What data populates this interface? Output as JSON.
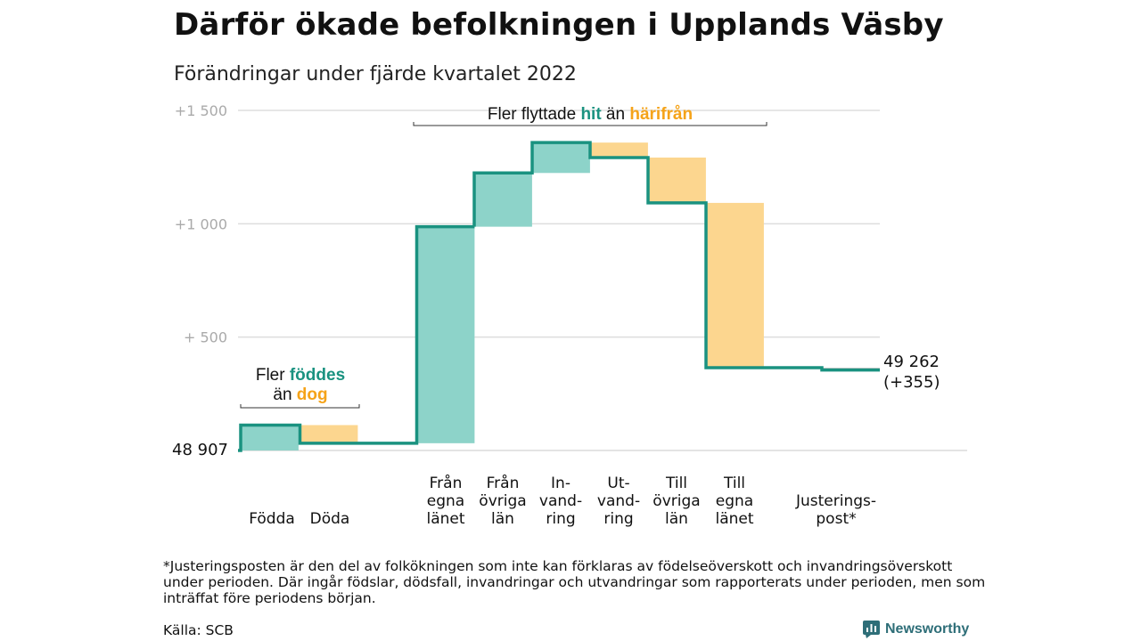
{
  "title": "Därför ökade befolkningen i Upplands Väsby",
  "subtitle": "Förändringar under fjärde kvartalet 2022",
  "footnote": "*Justeringsposten är den del av folkökningen som inte kan förklaras av födelseöverskott och invandringsöverskott under perioden. Där ingår födslar, dödsfall, invandringar och utvandringar som rapporterats under perioden, men som inträffat före periodens början.",
  "source": "Källa: SCB",
  "brand": {
    "name": "Newsworthy",
    "icon": "newsworthy-logo-icon"
  },
  "colors": {
    "line": "#1a9280",
    "increase_fill": "#8dd3c9",
    "decrease_fill": "#fcd68f",
    "adjustment_fill": "#c9c9c9",
    "teal_text": "#1a9280",
    "orange_text": "#f5a319",
    "axis_text": "#aaaaaa",
    "grid": "#dddddd"
  },
  "chart_data": {
    "type": "waterfall",
    "start_value": 48907,
    "start_label": "48 907",
    "end_value": 49262,
    "end_label": "49 262",
    "end_change_label": "(+355)",
    "y_axis": {
      "unit": "change from 48 907",
      "ylim": [
        0,
        1500
      ],
      "ticks": [
        {
          "value": 500,
          "label": "+ 500"
        },
        {
          "value": 1000,
          "label": "+1 000"
        },
        {
          "value": 1500,
          "label": "+1 500"
        }
      ]
    },
    "grid": true,
    "steps": [
      {
        "label_lines": [
          "Födda"
        ],
        "change": 112,
        "kind": "increase"
      },
      {
        "label_lines": [
          "Döda"
        ],
        "change": -80,
        "kind": "decrease"
      },
      {
        "label_lines": [
          "Från",
          "egna",
          "länet"
        ],
        "change": 955,
        "kind": "increase"
      },
      {
        "label_lines": [
          "Från",
          "övriga",
          "län"
        ],
        "change": 237,
        "kind": "increase"
      },
      {
        "label_lines": [
          "In-",
          "vand-",
          "ring"
        ],
        "change": 134,
        "kind": "increase"
      },
      {
        "label_lines": [
          "Ut-",
          "vand-",
          "ring"
        ],
        "change": -66,
        "kind": "decrease"
      },
      {
        "label_lines": [
          "Till",
          "övriga",
          "län"
        ],
        "change": -200,
        "kind": "decrease"
      },
      {
        "label_lines": [
          "Till",
          "egna",
          "länet"
        ],
        "change": -727,
        "kind": "decrease"
      },
      {
        "label_lines": [
          "Justerings-",
          "post*"
        ],
        "change": -10,
        "kind": "adjustment"
      }
    ],
    "annotations": [
      {
        "id": "migration",
        "lines": [
          [
            {
              "text": "Fler flyttade ",
              "color": "dark"
            },
            {
              "text": "hit",
              "color": "teal"
            },
            {
              "text": " än ",
              "color": "dark"
            },
            {
              "text": "härifrån",
              "color": "orange"
            }
          ]
        ]
      },
      {
        "id": "births",
        "lines": [
          [
            {
              "text": "Fler ",
              "color": "dark"
            },
            {
              "text": "föddes",
              "color": "teal"
            }
          ],
          [
            {
              "text": "än ",
              "color": "dark"
            },
            {
              "text": "dog",
              "color": "orange"
            }
          ]
        ]
      }
    ]
  }
}
